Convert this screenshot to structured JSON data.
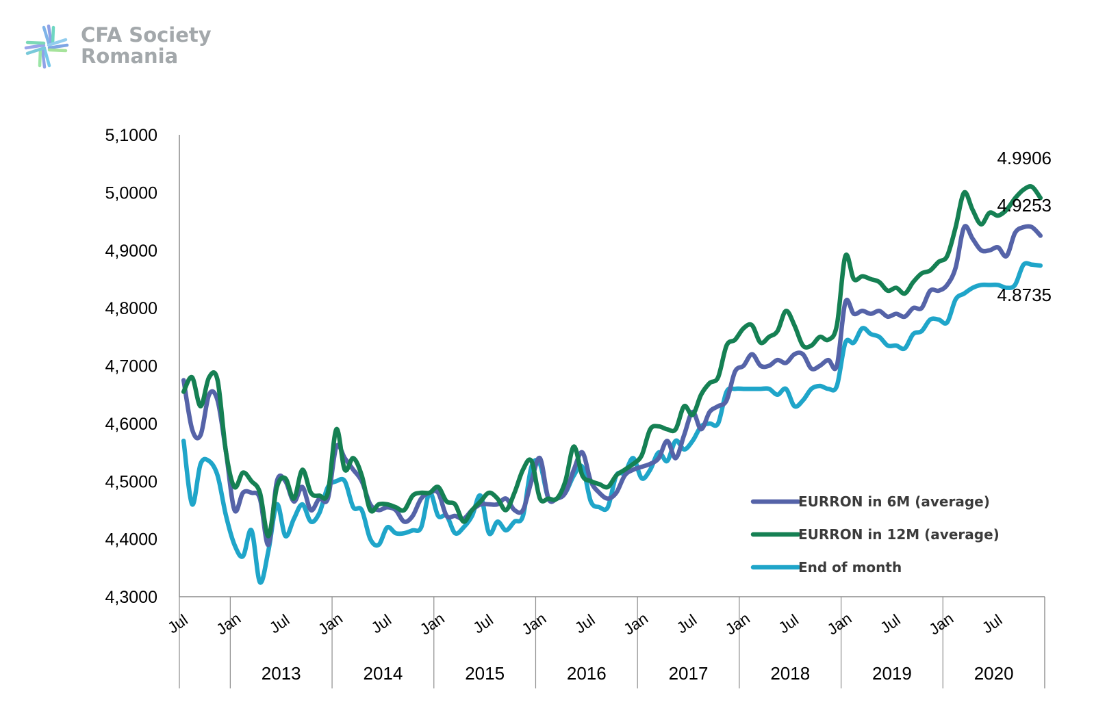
{
  "brand": {
    "line1": "CFA Society",
    "line2": "Romania"
  },
  "chart_data": {
    "type": "line",
    "ylim": [
      4.3,
      5.1
    ],
    "y_ticks": [
      "4,3000",
      "4,4000",
      "4,5000",
      "4,6000",
      "4,7000",
      "4,8000",
      "4,9000",
      "5,0000",
      "5,1000"
    ],
    "x_start": "2012-07",
    "x_end": "2020-12",
    "x_tick_labels": [
      "Jul",
      "Jan",
      "Jul",
      "Jan",
      "Jul",
      "Jan",
      "Jul",
      "Jan",
      "Jul",
      "Jan",
      "Jul",
      "Jan",
      "Jul",
      "Jan",
      "Jul",
      "Jan",
      "Jul"
    ],
    "years": [
      "2013",
      "2014",
      "2015",
      "2016",
      "2017",
      "2018",
      "2019",
      "2020"
    ],
    "legend_position": "bottom-right",
    "grid": false,
    "annotations": [
      "4.9906",
      "4.9253",
      "4.8735"
    ],
    "series": [
      {
        "name": "EURRON  in 6M (average)",
        "color": "#5563a8",
        "x": [
          "2012-07",
          "2012-08",
          "2012-09",
          "2012-10",
          "2012-11",
          "2012-12",
          "2013-01",
          "2013-02",
          "2013-03",
          "2013-04",
          "2013-05",
          "2013-06",
          "2013-07",
          "2013-08",
          "2013-09",
          "2013-10",
          "2013-11",
          "2013-12",
          "2014-01",
          "2014-02",
          "2014-03",
          "2014-04",
          "2014-05",
          "2014-06",
          "2014-07",
          "2014-08",
          "2014-09",
          "2014-10",
          "2014-11",
          "2014-12",
          "2015-01",
          "2015-02",
          "2015-03",
          "2015-04",
          "2015-05",
          "2015-06",
          "2015-07",
          "2015-08",
          "2015-09",
          "2015-10",
          "2015-11",
          "2015-12",
          "2016-01",
          "2016-02",
          "2016-03",
          "2016-04",
          "2016-05",
          "2016-06",
          "2016-07",
          "2016-08",
          "2016-09",
          "2016-10",
          "2016-11",
          "2016-12",
          "2017-01",
          "2017-02",
          "2017-03",
          "2017-04",
          "2017-05",
          "2017-06",
          "2017-07",
          "2017-08",
          "2017-09",
          "2017-10",
          "2017-11",
          "2017-12",
          "2018-01",
          "2018-02",
          "2018-03",
          "2018-04",
          "2018-05",
          "2018-06",
          "2018-07",
          "2018-08",
          "2018-09",
          "2018-10",
          "2018-11",
          "2018-12",
          "2019-01",
          "2019-02",
          "2019-03",
          "2019-04",
          "2019-05",
          "2019-06",
          "2019-07",
          "2019-08",
          "2019-09",
          "2019-10",
          "2019-11",
          "2019-12",
          "2020-01",
          "2020-02",
          "2020-03",
          "2020-04",
          "2020-05",
          "2020-06",
          "2020-07",
          "2020-08",
          "2020-09",
          "2020-10",
          "2020-11",
          "2020-12"
        ],
        "y": [
          4.675,
          4.59,
          4.58,
          4.65,
          4.64,
          4.55,
          4.45,
          4.48,
          4.48,
          4.47,
          4.39,
          4.5,
          4.5,
          4.465,
          4.49,
          4.45,
          4.47,
          4.47,
          4.56,
          4.54,
          4.52,
          4.5,
          4.46,
          4.45,
          4.455,
          4.45,
          4.43,
          4.44,
          4.47,
          4.48,
          4.48,
          4.44,
          4.44,
          4.435,
          4.45,
          4.46,
          4.46,
          4.46,
          4.47,
          4.45,
          4.45,
          4.5,
          4.54,
          4.47,
          4.47,
          4.48,
          4.52,
          4.55,
          4.5,
          4.48,
          4.47,
          4.48,
          4.51,
          4.52,
          4.525,
          4.53,
          4.54,
          4.57,
          4.54,
          4.58,
          4.62,
          4.59,
          4.62,
          4.63,
          4.64,
          4.69,
          4.7,
          4.72,
          4.7,
          4.7,
          4.71,
          4.705,
          4.72,
          4.72,
          4.695,
          4.7,
          4.71,
          4.7,
          4.81,
          4.79,
          4.795,
          4.79,
          4.795,
          4.785,
          4.79,
          4.785,
          4.8,
          4.8,
          4.83,
          4.83,
          4.84,
          4.87,
          4.94,
          4.92,
          4.9,
          4.9,
          4.905,
          4.89,
          4.93,
          4.94,
          4.94,
          4.9253
        ]
      },
      {
        "name": "EURRON  in 12M (average)",
        "color": "#158053",
        "x": [
          "2012-07",
          "2012-08",
          "2012-09",
          "2012-10",
          "2012-11",
          "2012-12",
          "2013-01",
          "2013-02",
          "2013-03",
          "2013-04",
          "2013-05",
          "2013-06",
          "2013-07",
          "2013-08",
          "2013-09",
          "2013-10",
          "2013-11",
          "2013-12",
          "2014-01",
          "2014-02",
          "2014-03",
          "2014-04",
          "2014-05",
          "2014-06",
          "2014-07",
          "2014-08",
          "2014-09",
          "2014-10",
          "2014-11",
          "2014-12",
          "2015-01",
          "2015-02",
          "2015-03",
          "2015-04",
          "2015-05",
          "2015-06",
          "2015-07",
          "2015-08",
          "2015-09",
          "2015-10",
          "2015-11",
          "2015-12",
          "2016-01",
          "2016-02",
          "2016-03",
          "2016-04",
          "2016-05",
          "2016-06",
          "2016-07",
          "2016-08",
          "2016-09",
          "2016-10",
          "2016-11",
          "2016-12",
          "2017-01",
          "2017-02",
          "2017-03",
          "2017-04",
          "2017-05",
          "2017-06",
          "2017-07",
          "2017-08",
          "2017-09",
          "2017-10",
          "2017-11",
          "2017-12",
          "2018-01",
          "2018-02",
          "2018-03",
          "2018-04",
          "2018-05",
          "2018-06",
          "2018-07",
          "2018-08",
          "2018-09",
          "2018-10",
          "2018-11",
          "2018-12",
          "2019-01",
          "2019-02",
          "2019-03",
          "2019-04",
          "2019-05",
          "2019-06",
          "2019-07",
          "2019-08",
          "2019-09",
          "2019-10",
          "2019-11",
          "2019-12",
          "2020-01",
          "2020-02",
          "2020-03",
          "2020-04",
          "2020-05",
          "2020-06",
          "2020-07",
          "2020-08",
          "2020-09",
          "2020-10",
          "2020-11",
          "2020-12"
        ],
        "y": [
          4.655,
          4.68,
          4.63,
          4.68,
          4.675,
          4.55,
          4.49,
          4.515,
          4.5,
          4.48,
          4.405,
          4.49,
          4.505,
          4.47,
          4.52,
          4.48,
          4.475,
          4.48,
          4.59,
          4.52,
          4.54,
          4.51,
          4.45,
          4.46,
          4.46,
          4.455,
          4.45,
          4.475,
          4.48,
          4.48,
          4.49,
          4.465,
          4.46,
          4.43,
          4.45,
          4.465,
          4.48,
          4.47,
          4.45,
          4.48,
          4.52,
          4.535,
          4.47,
          4.47,
          4.47,
          4.5,
          4.56,
          4.51,
          4.5,
          4.495,
          4.49,
          4.51,
          4.52,
          4.53,
          4.545,
          4.59,
          4.595,
          4.59,
          4.59,
          4.63,
          4.615,
          4.65,
          4.67,
          4.68,
          4.735,
          4.745,
          4.765,
          4.77,
          4.74,
          4.75,
          4.76,
          4.795,
          4.77,
          4.735,
          4.735,
          4.75,
          4.745,
          4.77,
          4.89,
          4.85,
          4.855,
          4.85,
          4.845,
          4.83,
          4.835,
          4.825,
          4.845,
          4.86,
          4.865,
          4.88,
          4.89,
          4.94,
          5.0,
          4.97,
          4.945,
          4.965,
          4.96,
          4.97,
          4.99,
          5.005,
          5.01,
          4.9906
        ]
      },
      {
        "name": "End of month",
        "color": "#1fa5c9",
        "x": [
          "2012-07",
          "2012-08",
          "2012-09",
          "2012-10",
          "2012-11",
          "2012-12",
          "2013-01",
          "2013-02",
          "2013-03",
          "2013-04",
          "2013-05",
          "2013-06",
          "2013-07",
          "2013-08",
          "2013-09",
          "2013-10",
          "2013-11",
          "2013-12",
          "2014-01",
          "2014-02",
          "2014-03",
          "2014-04",
          "2014-05",
          "2014-06",
          "2014-07",
          "2014-08",
          "2014-09",
          "2014-10",
          "2014-11",
          "2014-12",
          "2015-01",
          "2015-02",
          "2015-03",
          "2015-04",
          "2015-05",
          "2015-06",
          "2015-07",
          "2015-08",
          "2015-09",
          "2015-10",
          "2015-11",
          "2015-12",
          "2016-01",
          "2016-02",
          "2016-03",
          "2016-04",
          "2016-05",
          "2016-06",
          "2016-07",
          "2016-08",
          "2016-09",
          "2016-10",
          "2016-11",
          "2016-12",
          "2017-01",
          "2017-02",
          "2017-03",
          "2017-04",
          "2017-05",
          "2017-06",
          "2017-07",
          "2017-08",
          "2017-09",
          "2017-10",
          "2017-11",
          "2017-12",
          "2018-01",
          "2018-02",
          "2018-03",
          "2018-04",
          "2018-05",
          "2018-06",
          "2018-07",
          "2018-08",
          "2018-09",
          "2018-10",
          "2018-11",
          "2018-12",
          "2019-01",
          "2019-02",
          "2019-03",
          "2019-04",
          "2019-05",
          "2019-06",
          "2019-07",
          "2019-08",
          "2019-09",
          "2019-10",
          "2019-11",
          "2019-12",
          "2020-01",
          "2020-02",
          "2020-03",
          "2020-04",
          "2020-05",
          "2020-06",
          "2020-07",
          "2020-08",
          "2020-09",
          "2020-10",
          "2020-11",
          "2020-12"
        ],
        "y": [
          4.57,
          4.46,
          4.53,
          4.535,
          4.51,
          4.44,
          4.39,
          4.37,
          4.415,
          4.325,
          4.38,
          4.46,
          4.405,
          4.435,
          4.46,
          4.43,
          4.445,
          4.49,
          4.5,
          4.5,
          4.455,
          4.45,
          4.4,
          4.39,
          4.42,
          4.41,
          4.41,
          4.415,
          4.42,
          4.48,
          4.44,
          4.44,
          4.41,
          4.42,
          4.44,
          4.475,
          4.41,
          4.43,
          4.415,
          4.43,
          4.44,
          4.525,
          4.53,
          4.47,
          4.47,
          4.48,
          4.51,
          4.525,
          4.465,
          4.455,
          4.455,
          4.51,
          4.515,
          4.54,
          4.505,
          4.52,
          4.55,
          4.535,
          4.57,
          4.555,
          4.57,
          4.595,
          4.6,
          4.6,
          4.655,
          4.66,
          4.66,
          4.66,
          4.66,
          4.66,
          4.65,
          4.66,
          4.63,
          4.64,
          4.66,
          4.665,
          4.66,
          4.665,
          4.74,
          4.74,
          4.765,
          4.755,
          4.75,
          4.735,
          4.735,
          4.73,
          4.755,
          4.76,
          4.78,
          4.78,
          4.775,
          4.815,
          4.825,
          4.835,
          4.84,
          4.84,
          4.84,
          4.835,
          4.84,
          4.875,
          4.875,
          4.8735
        ]
      }
    ]
  }
}
